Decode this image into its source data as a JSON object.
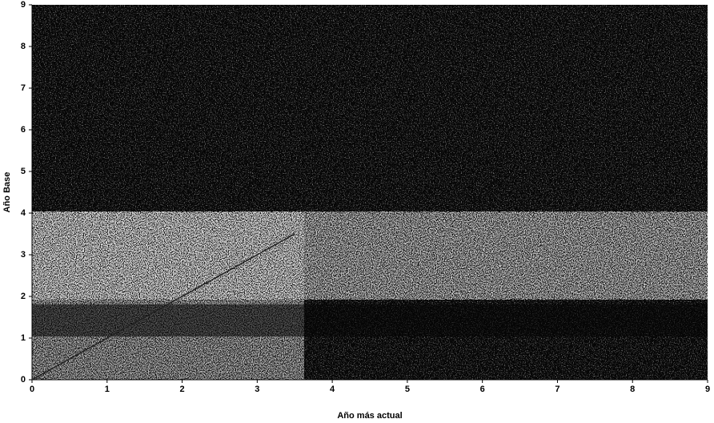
{
  "chart_data": {
    "type": "line",
    "x_label": "Año más actual",
    "y_label": "Año Base",
    "series": [
      {
        "color": "#222222",
        "x": [
          0,
          3.5
        ],
        "values": [
          0,
          3.5
        ]
      }
    ],
    "xlim": [
      0,
      9
    ],
    "ylim": [
      0,
      9
    ],
    "xticks": [
      0,
      1,
      2,
      3,
      4,
      5,
      6,
      7,
      8,
      9
    ],
    "yticks": [
      0,
      1,
      2,
      3,
      4,
      5,
      6,
      7,
      8,
      9
    ]
  }
}
